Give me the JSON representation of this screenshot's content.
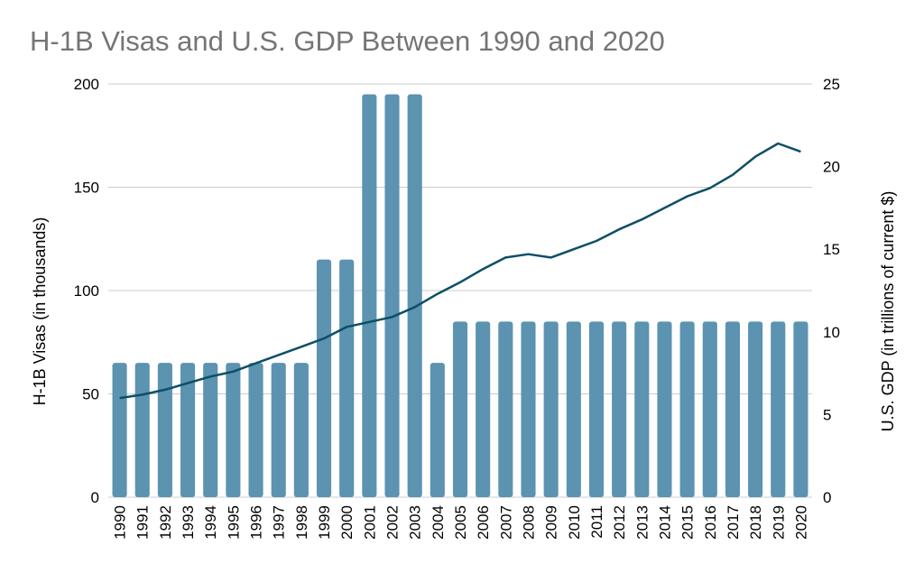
{
  "chart_data": {
    "type": "bar",
    "title": "H-1B Visas and U.S. GDP Between 1990 and 2020",
    "categories": [
      "1990",
      "1991",
      "1992",
      "1993",
      "1994",
      "1995",
      "1996",
      "1997",
      "1998",
      "1999",
      "2000",
      "2001",
      "2002",
      "2003",
      "2004",
      "2005",
      "2006",
      "2007",
      "2008",
      "2009",
      "2010",
      "2011",
      "2012",
      "2013",
      "2014",
      "2015",
      "2016",
      "2017",
      "2018",
      "2019",
      "2020"
    ],
    "ylabel": "H-1B Visas (in thousands)",
    "y2label": "U.S. GDP (in trillions of current $)",
    "ylim": [
      0,
      200
    ],
    "y2lim": [
      0,
      25
    ],
    "yticks": [
      "0",
      "50",
      "100",
      "150",
      "200"
    ],
    "y2ticks": [
      "0",
      "5",
      "10",
      "15",
      "20",
      "25"
    ],
    "series": [
      {
        "name": "H-1B Visas",
        "type": "bar",
        "axis": "left",
        "color": "#5b93b1",
        "values": [
          65,
          65,
          65,
          65,
          65,
          65,
          65,
          65,
          65,
          115,
          115,
          195,
          195,
          195,
          65,
          85,
          85,
          85,
          85,
          85,
          85,
          85,
          85,
          85,
          85,
          85,
          85,
          85,
          85,
          85,
          85
        ]
      },
      {
        "name": "U.S. GDP",
        "type": "line",
        "axis": "right",
        "color": "#0d4f66",
        "values": [
          6.0,
          6.2,
          6.5,
          6.9,
          7.3,
          7.6,
          8.1,
          8.6,
          9.1,
          9.6,
          10.3,
          10.6,
          10.9,
          11.5,
          12.3,
          13.0,
          13.8,
          14.5,
          14.7,
          14.5,
          15.0,
          15.5,
          16.2,
          16.8,
          17.5,
          18.2,
          18.7,
          19.5,
          20.6,
          21.4,
          20.9
        ]
      }
    ]
  }
}
